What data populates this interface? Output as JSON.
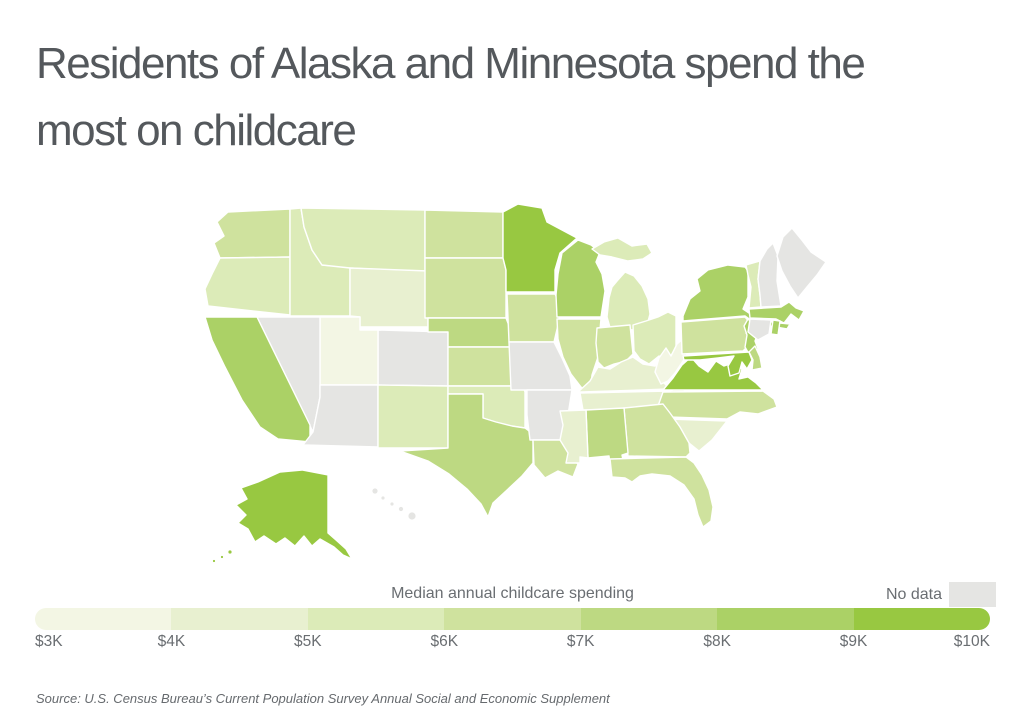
{
  "title": "Residents of Alaska and Minnesota spend the most on childcare",
  "legend": {
    "title": "Median annual childcare spending",
    "no_data_label": "No data"
  },
  "source": "Source:  U.S. Census Bureau’s Current Population Survey Annual Social and Economic Supplement",
  "colors": {
    "title_text": "#54585c",
    "legend_text": "#6a6e72",
    "source_text": "#666a6e",
    "state_border": "#ffffff",
    "no_data": "#e5e5e3",
    "scale_stops": [
      "#f3f6e4",
      "#e8f0d0",
      "#dcebb8",
      "#cfe29e",
      "#bdd982",
      "#abd166",
      "#98c841"
    ]
  },
  "chart_data": {
    "type": "choropleth",
    "title": "Residents of Alaska and Minnesota spend the most on childcare",
    "legend_title": "Median annual childcare spending",
    "unit": "USD per year",
    "domain": [
      3000,
      10000
    ],
    "bin_size": 1000,
    "legend_ticks": [
      "$3K",
      "$4K",
      "$5K",
      "$6K",
      "$7K",
      "$8K",
      "$9K",
      "$10K"
    ],
    "no_data_states": [
      "AZ",
      "AR",
      "CO",
      "CT",
      "HI",
      "ME",
      "MO",
      "NV",
      "NH"
    ],
    "states": [
      {
        "code": "AL",
        "name": "Alabama",
        "value": 7500
      },
      {
        "code": "AK",
        "name": "Alaska",
        "value": 9700
      },
      {
        "code": "AZ",
        "name": "Arizona",
        "value": null
      },
      {
        "code": "AR",
        "name": "Arkansas",
        "value": null
      },
      {
        "code": "CA",
        "name": "California",
        "value": 8500
      },
      {
        "code": "CO",
        "name": "Colorado",
        "value": null
      },
      {
        "code": "CT",
        "name": "Connecticut",
        "value": null
      },
      {
        "code": "DE",
        "name": "Delaware",
        "value": 7500
      },
      {
        "code": "FL",
        "name": "Florida",
        "value": 6500
      },
      {
        "code": "GA",
        "name": "Georgia",
        "value": 6500
      },
      {
        "code": "HI",
        "name": "Hawaii",
        "value": null
      },
      {
        "code": "ID",
        "name": "Idaho",
        "value": 5500
      },
      {
        "code": "IL",
        "name": "Illinois",
        "value": 6400
      },
      {
        "code": "IN",
        "name": "Indiana",
        "value": 6500
      },
      {
        "code": "IA",
        "name": "Iowa",
        "value": 6700
      },
      {
        "code": "KS",
        "name": "Kansas",
        "value": 6300
      },
      {
        "code": "KY",
        "name": "Kentucky",
        "value": 4500
      },
      {
        "code": "LA",
        "name": "Louisiana",
        "value": 6400
      },
      {
        "code": "ME",
        "name": "Maine",
        "value": null
      },
      {
        "code": "MD",
        "name": "Maryland",
        "value": 9100
      },
      {
        "code": "MA",
        "name": "Massachusetts",
        "value": 8500
      },
      {
        "code": "MI",
        "name": "Michigan",
        "value": 5300
      },
      {
        "code": "MN",
        "name": "Minnesota",
        "value": 9600
      },
      {
        "code": "MS",
        "name": "Mississippi",
        "value": 4400
      },
      {
        "code": "MO",
        "name": "Missouri",
        "value": null
      },
      {
        "code": "MT",
        "name": "Montana",
        "value": 5400
      },
      {
        "code": "NE",
        "name": "Nebraska",
        "value": 7300
      },
      {
        "code": "NV",
        "name": "Nevada",
        "value": null
      },
      {
        "code": "NH",
        "name": "New Hampshire",
        "value": null
      },
      {
        "code": "NJ",
        "name": "New Jersey",
        "value": 8400
      },
      {
        "code": "NM",
        "name": "New Mexico",
        "value": 5700
      },
      {
        "code": "NY",
        "name": "New York",
        "value": 8500
      },
      {
        "code": "NC",
        "name": "North Carolina",
        "value": 6600
      },
      {
        "code": "ND",
        "name": "North Dakota",
        "value": 6700
      },
      {
        "code": "OH",
        "name": "Ohio",
        "value": 5700
      },
      {
        "code": "OK",
        "name": "Oklahoma",
        "value": 5600
      },
      {
        "code": "OR",
        "name": "Oregon",
        "value": 5600
      },
      {
        "code": "PA",
        "name": "Pennsylvania",
        "value": 6600
      },
      {
        "code": "RI",
        "name": "Rhode Island",
        "value": 8400
      },
      {
        "code": "SC",
        "name": "South Carolina",
        "value": 4500
      },
      {
        "code": "SD",
        "name": "South Dakota",
        "value": 6700
      },
      {
        "code": "TN",
        "name": "Tennessee",
        "value": 4500
      },
      {
        "code": "TX",
        "name": "Texas",
        "value": 7400
      },
      {
        "code": "UT",
        "name": "Utah",
        "value": 3500
      },
      {
        "code": "VT",
        "name": "Vermont",
        "value": 5500
      },
      {
        "code": "VA",
        "name": "Virginia",
        "value": 9400
      },
      {
        "code": "WA",
        "name": "Washington",
        "value": 6700
      },
      {
        "code": "WV",
        "name": "West Virginia",
        "value": 3700
      },
      {
        "code": "WI",
        "name": "Wisconsin",
        "value": 8400
      },
      {
        "code": "WY",
        "name": "Wyoming",
        "value": 4800
      }
    ]
  }
}
